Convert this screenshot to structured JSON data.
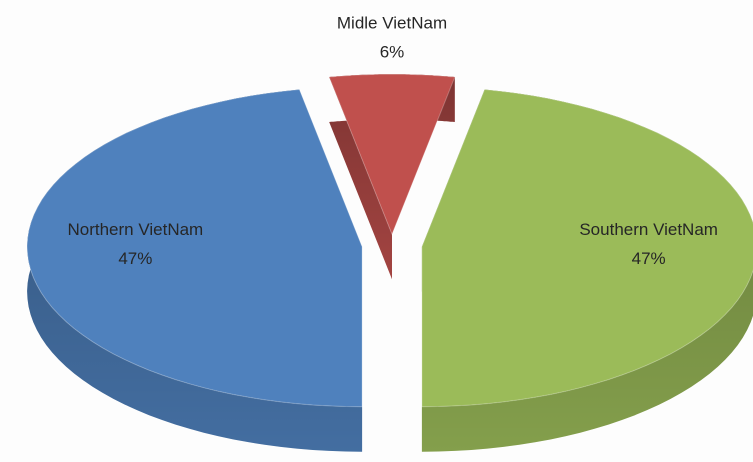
{
  "chart_data": {
    "type": "pie",
    "categories": [
      "Midle VietNam",
      "Southern VietNam",
      "Northern VietNam"
    ],
    "values": [
      6,
      47,
      47
    ],
    "value_labels": [
      "6%",
      "47%",
      "47%"
    ],
    "colors": [
      "#c0504d",
      "#9bbb59",
      "#4f81bd"
    ]
  }
}
